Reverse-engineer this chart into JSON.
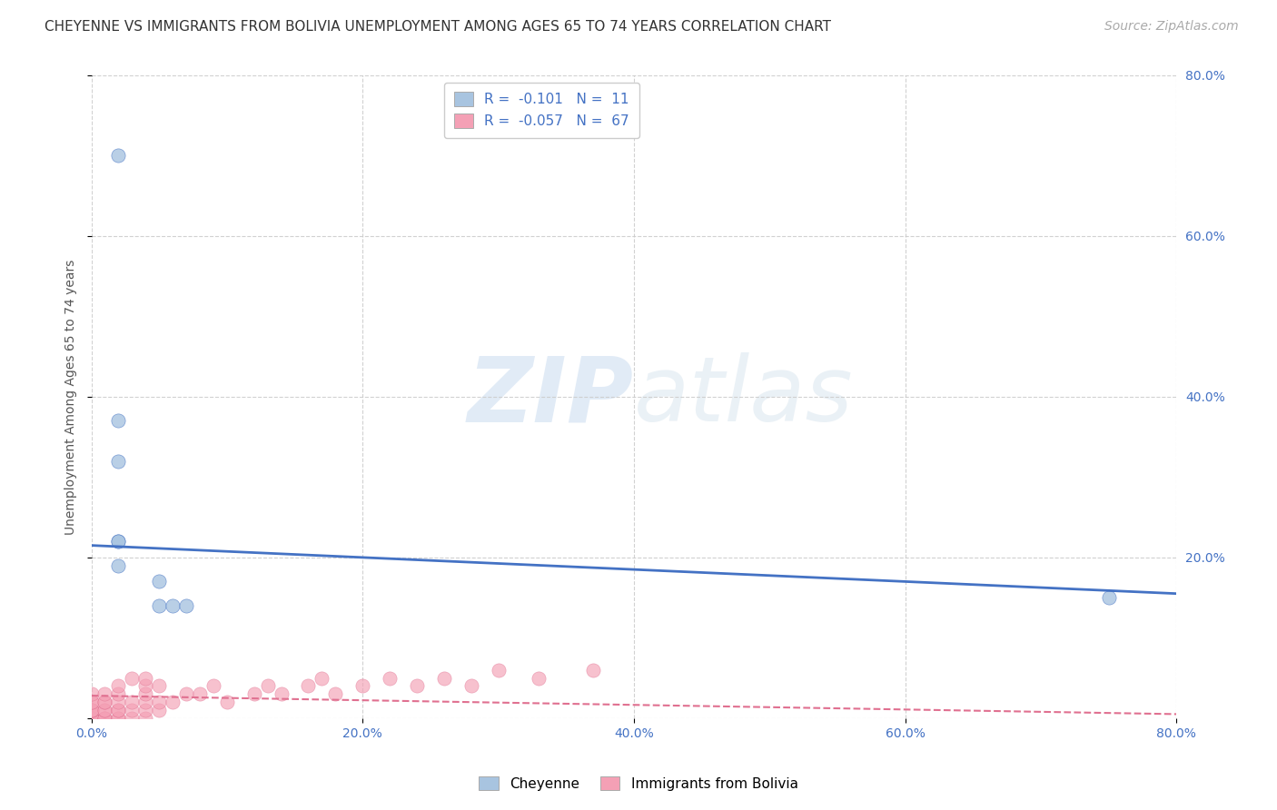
{
  "title": "CHEYENNE VS IMMIGRANTS FROM BOLIVIA UNEMPLOYMENT AMONG AGES 65 TO 74 YEARS CORRELATION CHART",
  "source": "Source: ZipAtlas.com",
  "ylabel": "Unemployment Among Ages 65 to 74 years",
  "xlim": [
    0.0,
    0.8
  ],
  "ylim": [
    0.0,
    0.8
  ],
  "xtick_vals": [
    0.0,
    0.2,
    0.4,
    0.6,
    0.8
  ],
  "xtick_labels": [
    "0.0%",
    "20.0%",
    "40.0%",
    "60.0%",
    "80.0%"
  ],
  "ytick_vals": [
    0.0,
    0.2,
    0.4,
    0.6,
    0.8
  ],
  "ytick_labels": [
    "",
    "20.0%",
    "40.0%",
    "60.0%",
    "80.0%"
  ],
  "cheyenne_R": "-0.101",
  "cheyenne_N": "11",
  "bolivia_R": "-0.057",
  "bolivia_N": "67",
  "cheyenne_dot_color": "#a8c4e0",
  "bolivia_dot_color": "#f4a0b5",
  "cheyenne_line_color": "#4472c4",
  "bolivia_line_color": "#e07090",
  "watermark_color": "#dce8f5",
  "background_color": "#ffffff",
  "cheyenne_points_x": [
    0.02,
    0.02,
    0.02,
    0.02,
    0.02,
    0.05,
    0.05,
    0.06,
    0.07,
    0.75,
    0.02
  ],
  "cheyenne_points_y": [
    0.7,
    0.37,
    0.32,
    0.22,
    0.19,
    0.17,
    0.14,
    0.14,
    0.14,
    0.15,
    0.22
  ],
  "bolivia_points_x": [
    0.0,
    0.0,
    0.0,
    0.0,
    0.0,
    0.0,
    0.0,
    0.0,
    0.0,
    0.0,
    0.0,
    0.0,
    0.0,
    0.0,
    0.0,
    0.0,
    0.0,
    0.0,
    0.0,
    0.0,
    0.01,
    0.01,
    0.01,
    0.01,
    0.01,
    0.01,
    0.01,
    0.01,
    0.02,
    0.02,
    0.02,
    0.02,
    0.02,
    0.02,
    0.02,
    0.03,
    0.03,
    0.03,
    0.03,
    0.04,
    0.04,
    0.04,
    0.04,
    0.04,
    0.04,
    0.05,
    0.05,
    0.05,
    0.06,
    0.07,
    0.08,
    0.09,
    0.1,
    0.12,
    0.13,
    0.14,
    0.16,
    0.17,
    0.18,
    0.2,
    0.22,
    0.24,
    0.26,
    0.28,
    0.3,
    0.33,
    0.37
  ],
  "bolivia_points_y": [
    0.0,
    0.0,
    0.0,
    0.0,
    0.0,
    0.0,
    0.0,
    0.0,
    0.0,
    0.0,
    0.0,
    0.0,
    0.0,
    0.01,
    0.01,
    0.01,
    0.01,
    0.02,
    0.02,
    0.03,
    0.0,
    0.0,
    0.0,
    0.01,
    0.01,
    0.02,
    0.02,
    0.03,
    0.0,
    0.0,
    0.01,
    0.01,
    0.02,
    0.03,
    0.04,
    0.0,
    0.01,
    0.02,
    0.05,
    0.0,
    0.01,
    0.02,
    0.03,
    0.04,
    0.05,
    0.01,
    0.02,
    0.04,
    0.02,
    0.03,
    0.03,
    0.04,
    0.02,
    0.03,
    0.04,
    0.03,
    0.04,
    0.05,
    0.03,
    0.04,
    0.05,
    0.04,
    0.05,
    0.04,
    0.06,
    0.05,
    0.06
  ],
  "cheyenne_line_x": [
    0.0,
    0.8
  ],
  "cheyenne_line_y": [
    0.215,
    0.155
  ],
  "bolivia_line_x": [
    0.0,
    0.8
  ],
  "bolivia_line_y": [
    0.028,
    0.005
  ],
  "legend_label_cheyenne": "Cheyenne",
  "legend_label_bolivia": "Immigrants from Bolivia",
  "title_fontsize": 11,
  "axis_label_fontsize": 10,
  "tick_fontsize": 10,
  "legend_fontsize": 11,
  "source_fontsize": 10
}
